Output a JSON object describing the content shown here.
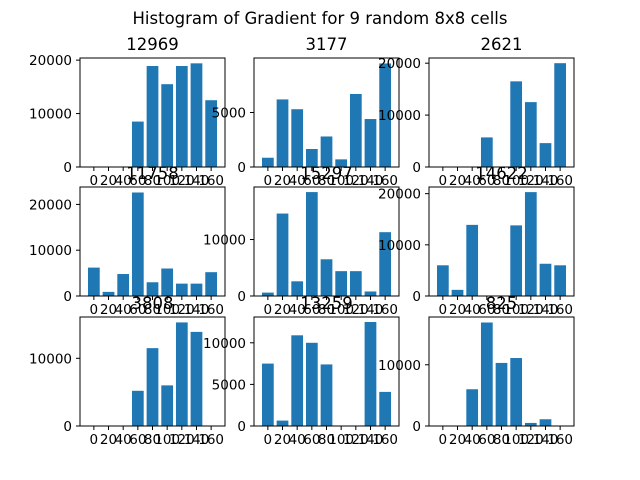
{
  "figure": {
    "title": "Histogram of Gradient for 9 random 8x8 cells"
  },
  "colors": {
    "bar": "#1f77b4",
    "axis": "#000000",
    "background": "#ffffff"
  },
  "chart_data": [
    {
      "type": "bar",
      "title": "12969",
      "categories": [
        0,
        20,
        40,
        60,
        80,
        100,
        120,
        140,
        160
      ],
      "x_tick_labels": [
        "0",
        "20",
        "40",
        "60",
        "80",
        "100",
        "120",
        "140",
        "160"
      ],
      "values": [
        0,
        0,
        0,
        8500,
        18900,
        15500,
        18900,
        19400,
        12500
      ],
      "ylim": [
        0,
        20400
      ],
      "y_ticks": [
        0,
        10000,
        20000
      ],
      "y_tick_labels": [
        "0",
        "10000",
        "20000"
      ]
    },
    {
      "type": "bar",
      "title": "3177",
      "categories": [
        0,
        20,
        40,
        60,
        80,
        100,
        120,
        140,
        160
      ],
      "x_tick_labels": [
        "0",
        "20",
        "40",
        "60",
        "80",
        "100",
        "120",
        "140",
        "160"
      ],
      "values": [
        850,
        6200,
        5300,
        1650,
        2800,
        700,
        6700,
        4400,
        9500
      ],
      "ylim": [
        0,
        10000
      ],
      "y_ticks": [
        0,
        5000
      ],
      "y_tick_labels": [
        "0",
        "5000"
      ]
    },
    {
      "type": "bar",
      "title": "2621",
      "categories": [
        0,
        20,
        40,
        60,
        80,
        100,
        120,
        140,
        160
      ],
      "x_tick_labels": [
        "0",
        "20",
        "40",
        "60",
        "80",
        "100",
        "120",
        "140",
        "160"
      ],
      "values": [
        0,
        0,
        0,
        5700,
        0,
        16500,
        12500,
        4600,
        20000
      ],
      "ylim": [
        0,
        21000
      ],
      "y_ticks": [
        0,
        10000,
        20000
      ],
      "y_tick_labels": [
        "0",
        "10000",
        "20000"
      ]
    },
    {
      "type": "bar",
      "title": "11758",
      "categories": [
        0,
        20,
        40,
        60,
        80,
        100,
        120,
        140,
        160
      ],
      "x_tick_labels": [
        "0",
        "20",
        "40",
        "60",
        "80",
        "100",
        "120",
        "140",
        "160"
      ],
      "values": [
        6200,
        900,
        4800,
        22600,
        3000,
        6000,
        2700,
        2700,
        5200
      ],
      "ylim": [
        0,
        23800
      ],
      "y_ticks": [
        0,
        10000,
        20000
      ],
      "y_tick_labels": [
        "0",
        "10000",
        "20000"
      ]
    },
    {
      "type": "bar",
      "title": "15297",
      "categories": [
        0,
        20,
        40,
        60,
        80,
        100,
        120,
        140,
        160
      ],
      "x_tick_labels": [
        "0",
        "20",
        "40",
        "60",
        "80",
        "100",
        "120",
        "140",
        "160"
      ],
      "values": [
        600,
        14600,
        2600,
        18400,
        6500,
        4400,
        4400,
        800,
        11300
      ],
      "ylim": [
        0,
        19300
      ],
      "y_ticks": [
        0,
        10000
      ],
      "y_tick_labels": [
        "0",
        "10000"
      ]
    },
    {
      "type": "bar",
      "title": "14622",
      "categories": [
        0,
        20,
        40,
        60,
        80,
        100,
        120,
        140,
        160
      ],
      "x_tick_labels": [
        "0",
        "20",
        "40",
        "60",
        "80",
        "100",
        "120",
        "140",
        "160"
      ],
      "values": [
        6000,
        1200,
        13900,
        0,
        0,
        13800,
        20300,
        6300,
        6000
      ],
      "ylim": [
        0,
        21300
      ],
      "y_ticks": [
        0,
        10000,
        20000
      ],
      "y_tick_labels": [
        "0",
        "10000",
        "20000"
      ]
    },
    {
      "type": "bar",
      "title": "3808",
      "categories": [
        0,
        20,
        40,
        60,
        80,
        100,
        120,
        140,
        160
      ],
      "x_tick_labels": [
        "0",
        "20",
        "40",
        "60",
        "80",
        "100",
        "120",
        "140",
        "160"
      ],
      "values": [
        0,
        0,
        0,
        5200,
        11500,
        6000,
        15300,
        13900,
        0
      ],
      "ylim": [
        0,
        16100
      ],
      "y_ticks": [
        0,
        10000
      ],
      "y_tick_labels": [
        "0",
        "10000"
      ]
    },
    {
      "type": "bar",
      "title": "13259",
      "categories": [
        0,
        20,
        40,
        60,
        80,
        100,
        120,
        140,
        160
      ],
      "x_tick_labels": [
        "0",
        "20",
        "40",
        "60",
        "80",
        "100",
        "120",
        "140",
        "160"
      ],
      "values": [
        7500,
        650,
        10900,
        10000,
        7400,
        0,
        0,
        12500,
        4100
      ],
      "ylim": [
        0,
        13100
      ],
      "y_ticks": [
        0,
        5000,
        10000
      ],
      "y_tick_labels": [
        "0",
        "5000",
        "10000"
      ]
    },
    {
      "type": "bar",
      "title": "825",
      "categories": [
        0,
        20,
        40,
        60,
        80,
        100,
        120,
        140,
        160
      ],
      "x_tick_labels": [
        "0",
        "20",
        "40",
        "60",
        "80",
        "100",
        "120",
        "140",
        "160"
      ],
      "values": [
        0,
        0,
        6000,
        16900,
        10300,
        11100,
        500,
        1100,
        0
      ],
      "ylim": [
        0,
        17800
      ],
      "y_ticks": [
        0,
        10000
      ],
      "y_tick_labels": [
        "0",
        "10000"
      ]
    }
  ]
}
